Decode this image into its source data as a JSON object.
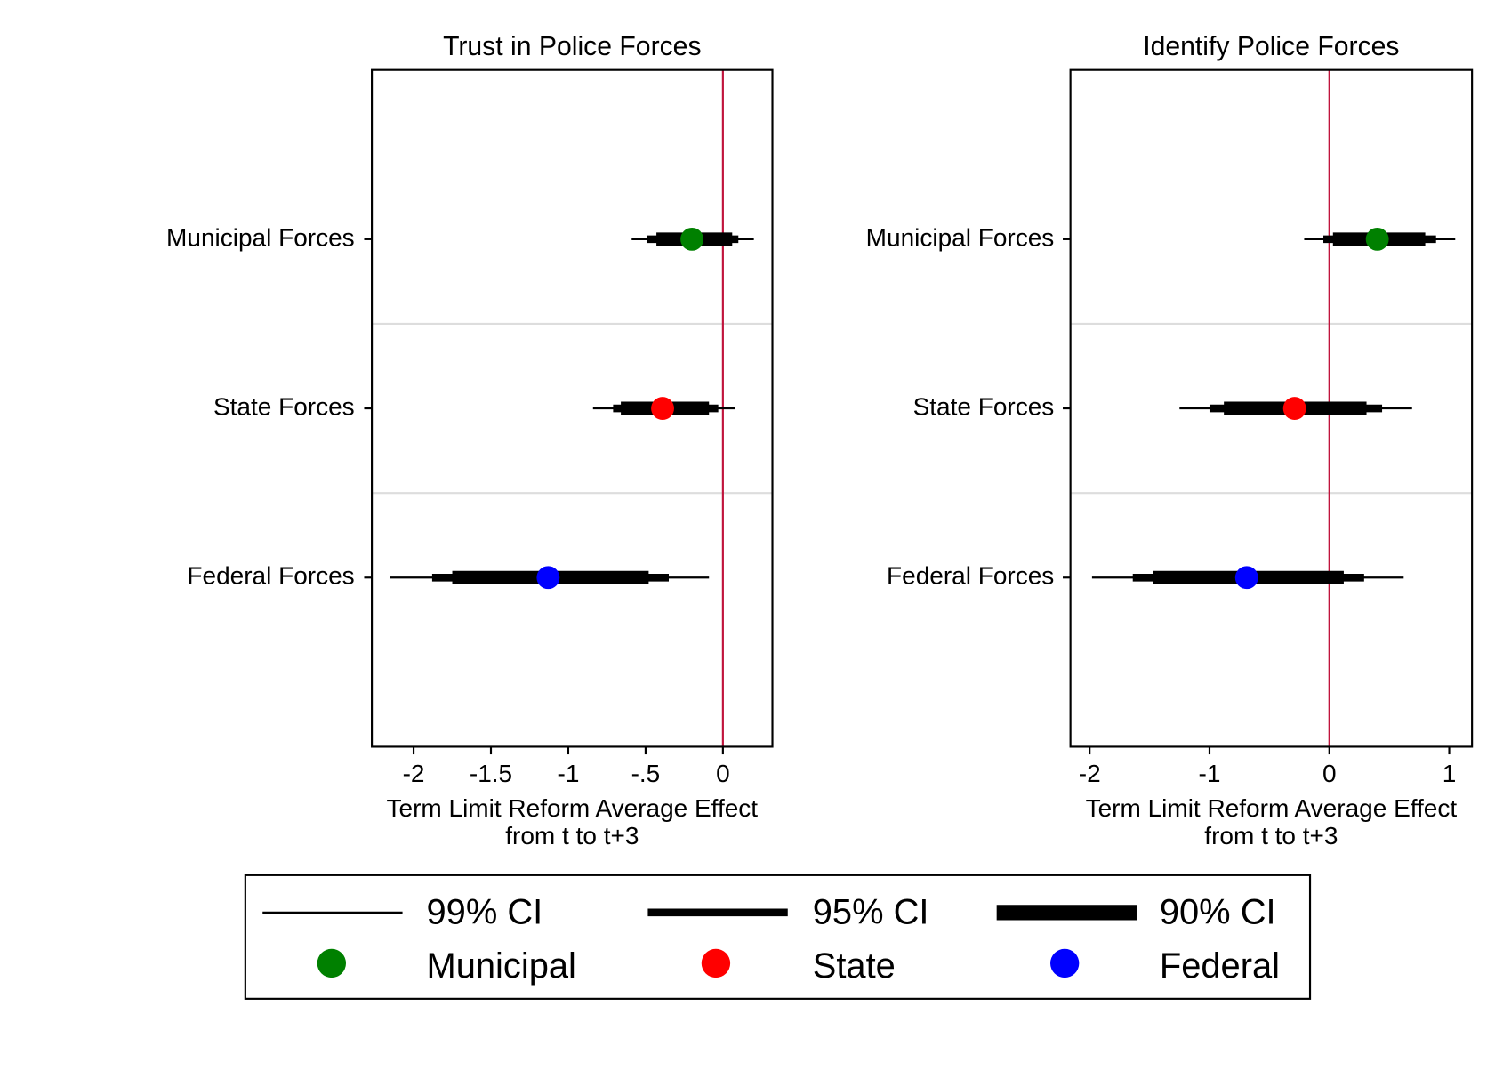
{
  "chart_data": [
    {
      "type": "coefplot",
      "title": "Trust in Police Forces",
      "xlabel": [
        "Term Limit Reform Average Effect",
        "from t to t+3"
      ],
      "categories": [
        "Municipal Forces",
        "State Forces",
        "Federal Forces"
      ],
      "values": [
        -0.2,
        -0.39,
        -1.13
      ],
      "ci99": [
        [
          -0.59,
          0.2
        ],
        [
          -0.84,
          0.08
        ],
        [
          -2.15,
          -0.09
        ]
      ],
      "ci95": [
        [
          -0.49,
          0.1
        ],
        [
          -0.71,
          -0.03
        ],
        [
          -1.88,
          -0.35
        ]
      ],
      "ci90": [
        [
          -0.43,
          0.06
        ],
        [
          -0.66,
          -0.09
        ],
        [
          -1.75,
          -0.48
        ]
      ],
      "colors": [
        "#008000",
        "#ff0000",
        "#0000ff"
      ],
      "xlim": [
        -2.27,
        0.32
      ],
      "xticks": [
        -2,
        -1.5,
        -1,
        {
          "value": -0.5,
          "label": "-.5"
        },
        0
      ],
      "xline": 0,
      "xline_color": "#c0143c"
    },
    {
      "type": "coefplot",
      "title": "Identify Police Forces",
      "xlabel": [
        "Term Limit Reform Average Effect",
        "from t to t+3"
      ],
      "categories": [
        "Municipal Forces",
        "State Forces",
        "Federal Forces"
      ],
      "values": [
        0.4,
        -0.29,
        -0.69
      ],
      "ci99": [
        [
          -0.21,
          1.05
        ],
        [
          -1.25,
          0.69
        ],
        [
          -1.98,
          0.62
        ]
      ],
      "ci95": [
        [
          -0.05,
          0.89
        ],
        [
          -1.0,
          0.44
        ],
        [
          -1.64,
          0.29
        ]
      ],
      "ci90": [
        [
          0.03,
          0.8
        ],
        [
          -0.88,
          0.31
        ],
        [
          -1.47,
          0.12
        ]
      ],
      "colors": [
        "#008000",
        "#ff0000",
        "#0000ff"
      ],
      "xlim": [
        -2.16,
        1.19
      ],
      "xticks": [
        -2,
        -1,
        0,
        1
      ],
      "xline": 0,
      "xline_color": "#c0143c"
    }
  ],
  "legend": {
    "ci_levels": [
      "99% CI",
      "95% CI",
      "90% CI"
    ],
    "groups": [
      "Municipal",
      "State",
      "Federal"
    ],
    "colors": [
      "#008000",
      "#ff0000",
      "#0000ff"
    ]
  }
}
